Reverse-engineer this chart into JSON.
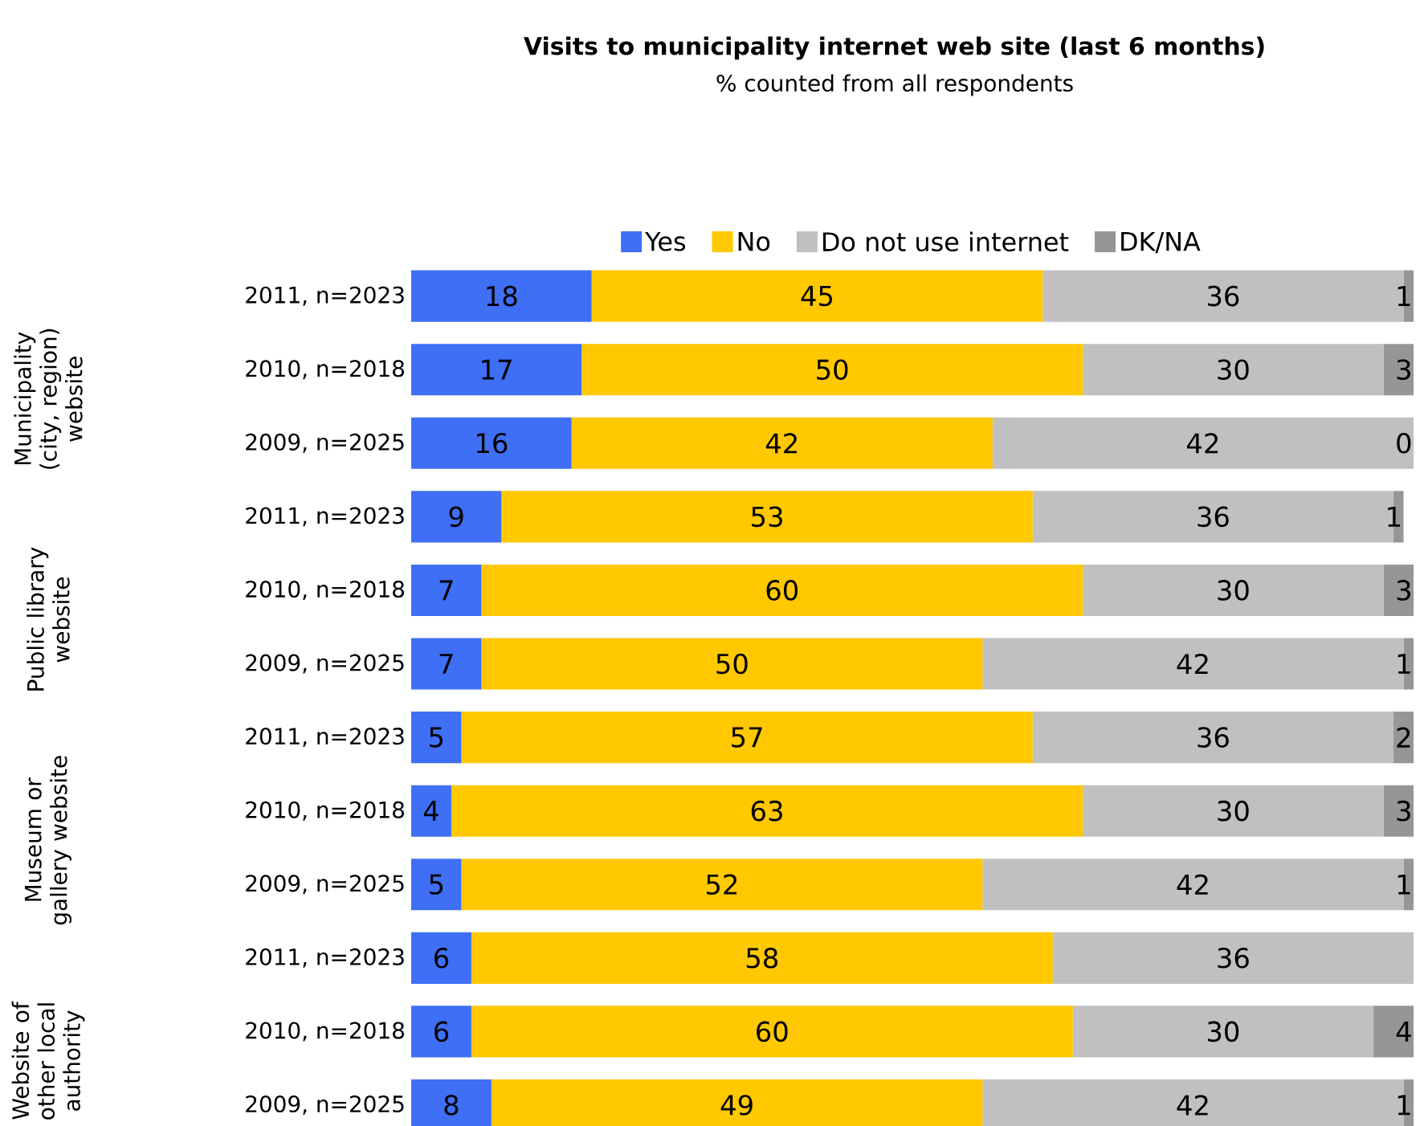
{
  "chart_data": {
    "type": "bar",
    "orientation": "horizontal",
    "stacked": true,
    "title": "Visits to municipality internet web site (last 6 months)",
    "subtitle": "% counted from all respondents",
    "categories": [
      "2011, n=2023",
      "2010, n=2018",
      "2009, n=2025",
      "2011, n=2023",
      "2010, n=2018",
      "2009, n=2025",
      "2011, n=2023",
      "2010, n=2018",
      "2009, n=2025",
      "2011, n=2023",
      "2010, n=2018",
      "2009, n=2025"
    ],
    "series": [
      {
        "name": "Yes",
        "color": "#3f6ff5",
        "values": [
          18,
          17,
          16,
          9,
          7,
          7,
          5,
          4,
          5,
          6,
          6,
          8
        ]
      },
      {
        "name": "No",
        "color": "#ffc800",
        "values": [
          45,
          50,
          42,
          53,
          60,
          50,
          57,
          63,
          52,
          58,
          60,
          49
        ]
      },
      {
        "name": "Do not use internet",
        "color": "#c0c0c0",
        "values": [
          36,
          30,
          42,
          36,
          30,
          42,
          36,
          30,
          42,
          36,
          30,
          42
        ]
      },
      {
        "name": "DK/NA",
        "color": "#969696",
        "values": [
          1,
          3,
          0,
          1,
          3,
          1,
          2,
          3,
          1,
          0,
          4,
          1
        ],
        "value_labels": [
          "1",
          "3",
          "0",
          "1",
          "3",
          "1",
          "2",
          "3",
          "1",
          null,
          "4",
          "1"
        ]
      }
    ],
    "xlim": [
      0,
      100
    ],
    "tick_labels": "y",
    "data_labels": true,
    "legend": "top",
    "annotations": [
      "Municipality (city, region) website",
      "Public library website",
      "Museum or gallery website",
      "Website of other local authority"
    ]
  }
}
